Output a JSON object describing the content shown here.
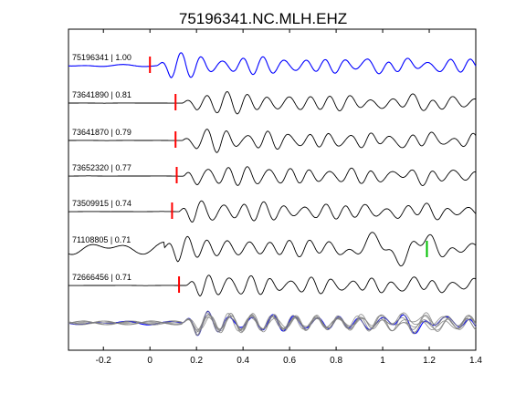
{
  "chart_data": {
    "type": "line",
    "title": "75196341.NC.MLH.EHZ",
    "xlabel": "",
    "ylabel": "",
    "xlim": [
      -0.35,
      1.4
    ],
    "x_ticks": [
      -0.2,
      0,
      0.2,
      0.4,
      0.6,
      0.8,
      1,
      1.2,
      1.4
    ],
    "x_tick_labels": [
      "-0.2",
      "0",
      "0.2",
      "0.4",
      "0.6",
      "0.8",
      "1",
      "1.2",
      "1.4"
    ],
    "grid": false,
    "colors": {
      "primary": "#0000ff",
      "secondary": "#000000",
      "stack": "#808080",
      "pick_p": "#ff0000",
      "pick_s": "#00c000"
    },
    "series": [
      {
        "event_id": "75196341",
        "correlation": "1.00",
        "label": "75196341 | 1.00",
        "color": "#0000ff",
        "p_pick": 0.0,
        "s_pick": null
      },
      {
        "event_id": "73641890",
        "correlation": "0.81",
        "label": "73641890 | 0.81",
        "color": "#000000",
        "p_pick": 0.11,
        "s_pick": null
      },
      {
        "event_id": "73641870",
        "correlation": "0.79",
        "label": "73641870 | 0.79",
        "color": "#000000",
        "p_pick": 0.11,
        "s_pick": null
      },
      {
        "event_id": "73652320",
        "correlation": "0.77",
        "label": "73652320 | 0.77",
        "color": "#000000",
        "p_pick": 0.115,
        "s_pick": null
      },
      {
        "event_id": "73509915",
        "correlation": "0.74",
        "label": "73509915 | 0.74",
        "color": "#000000",
        "p_pick": 0.095,
        "s_pick": null
      },
      {
        "event_id": "71108805",
        "correlation": "0.71",
        "label": "71108805 | 0.71",
        "color": "#000000",
        "p_pick": null,
        "s_pick": 1.19
      },
      {
        "event_id": "72666456",
        "correlation": "0.71",
        "label": "72666456 | 0.71",
        "color": "#000000",
        "p_pick": 0.125,
        "s_pick": null
      }
    ],
    "stack": {
      "description_visible": false,
      "overlay_count": 7
    }
  }
}
